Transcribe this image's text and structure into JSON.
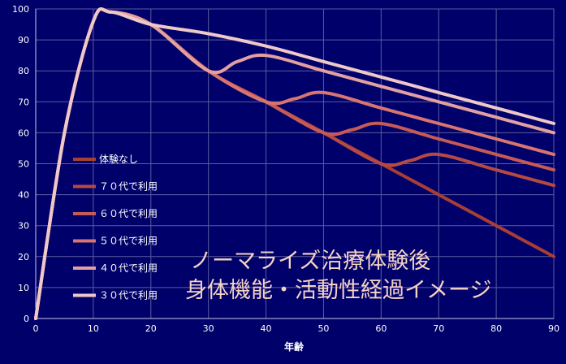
{
  "chart_data": {
    "type": "line",
    "xlabel": "年齢",
    "ylabel": "",
    "xlim": [
      0,
      90
    ],
    "ylim": [
      0,
      100
    ],
    "xticks": [
      0,
      10,
      20,
      30,
      40,
      50,
      60,
      70,
      80,
      90
    ],
    "yticks": [
      0,
      10,
      20,
      30,
      40,
      50,
      60,
      70,
      80,
      90,
      100
    ],
    "grid": true,
    "legend_position": "left",
    "annotation": [
      "ノーマライズ治療体験後",
      "身体機能・活動性経過イメージ"
    ],
    "series": [
      {
        "name": "体験なし",
        "color": "#a83e34",
        "points": [
          [
            0,
            0
          ],
          [
            5,
            60
          ],
          [
            10,
            96
          ],
          [
            13,
            99
          ],
          [
            20,
            95
          ],
          [
            30,
            80
          ],
          [
            40,
            70
          ],
          [
            50,
            60
          ],
          [
            60,
            50
          ],
          [
            70,
            40
          ],
          [
            80,
            30
          ],
          [
            90,
            20
          ]
        ]
      },
      {
        "name": "７０代で利用",
        "color": "#b64a42",
        "points": [
          [
            0,
            0
          ],
          [
            5,
            60
          ],
          [
            10,
            96
          ],
          [
            13,
            99
          ],
          [
            20,
            95
          ],
          [
            30,
            80
          ],
          [
            40,
            70
          ],
          [
            50,
            60
          ],
          [
            60,
            50
          ],
          [
            65,
            51
          ],
          [
            70,
            53
          ],
          [
            80,
            48
          ],
          [
            90,
            43
          ]
        ]
      },
      {
        "name": "６０代で利用",
        "color": "#c75a55",
        "points": [
          [
            0,
            0
          ],
          [
            5,
            60
          ],
          [
            10,
            96
          ],
          [
            13,
            99
          ],
          [
            20,
            95
          ],
          [
            30,
            80
          ],
          [
            40,
            70
          ],
          [
            50,
            60
          ],
          [
            55,
            61
          ],
          [
            60,
            63
          ],
          [
            70,
            58
          ],
          [
            80,
            53
          ],
          [
            90,
            48
          ]
        ]
      },
      {
        "name": "５０代で利用",
        "color": "#d9756f",
        "points": [
          [
            0,
            0
          ],
          [
            5,
            60
          ],
          [
            10,
            96
          ],
          [
            13,
            99
          ],
          [
            20,
            95
          ],
          [
            30,
            80
          ],
          [
            40,
            70
          ],
          [
            45,
            71
          ],
          [
            50,
            73
          ],
          [
            60,
            68
          ],
          [
            70,
            63
          ],
          [
            80,
            58
          ],
          [
            90,
            53
          ]
        ]
      },
      {
        "name": "４０代で利用",
        "color": "#e4a0a0",
        "points": [
          [
            0,
            0
          ],
          [
            5,
            60
          ],
          [
            10,
            96
          ],
          [
            13,
            99
          ],
          [
            20,
            95
          ],
          [
            30,
            80
          ],
          [
            35,
            83
          ],
          [
            40,
            85
          ],
          [
            50,
            80
          ],
          [
            60,
            75
          ],
          [
            70,
            70
          ],
          [
            80,
            65
          ],
          [
            90,
            60
          ]
        ]
      },
      {
        "name": "３０代で利用",
        "color": "#efc8c8",
        "points": [
          [
            0,
            0
          ],
          [
            5,
            60
          ],
          [
            10,
            96
          ],
          [
            13,
            99
          ],
          [
            20,
            95
          ],
          [
            30,
            92
          ],
          [
            40,
            88
          ],
          [
            50,
            83
          ],
          [
            60,
            78
          ],
          [
            70,
            73
          ],
          [
            80,
            68
          ],
          [
            90,
            63
          ]
        ]
      }
    ]
  }
}
